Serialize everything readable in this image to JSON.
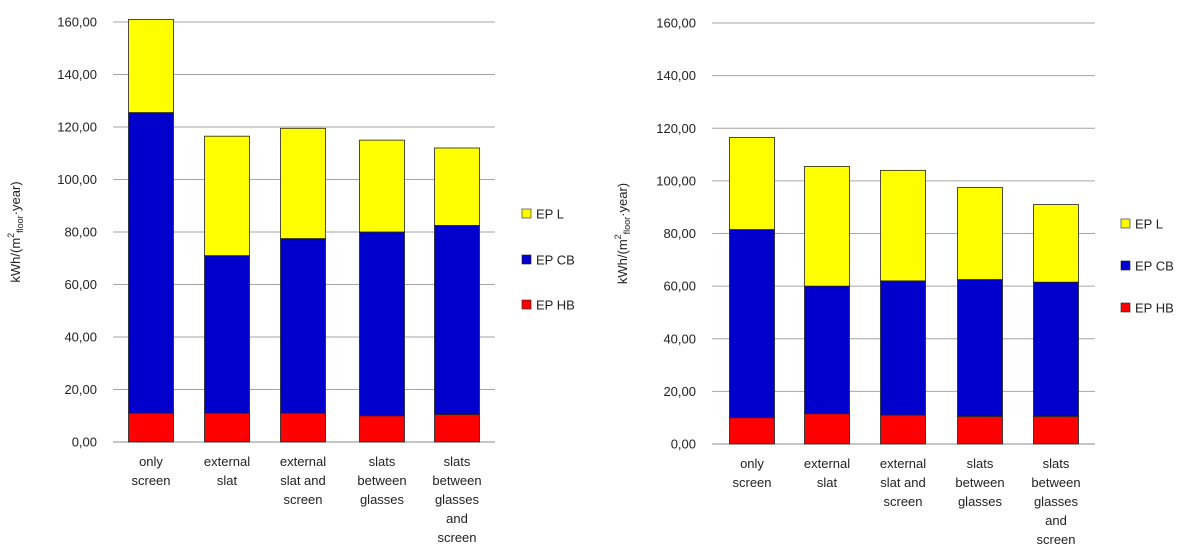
{
  "chart_data": [
    {
      "type": "bar",
      "stacked": true,
      "categories": [
        [
          "only",
          "screen"
        ],
        [
          "external",
          "slat"
        ],
        [
          "external",
          "slat and",
          "screen"
        ],
        [
          "slats",
          "between",
          "glasses"
        ],
        [
          "slats",
          "between",
          "glasses",
          "and",
          "screen"
        ]
      ],
      "series": [
        {
          "name": "EP HB",
          "color": "#ff0000",
          "values": [
            11,
            11,
            11,
            10,
            10.5
          ]
        },
        {
          "name": "EP CB",
          "color": "#0000cc",
          "values": [
            114.5,
            60,
            66.5,
            70,
            72
          ]
        },
        {
          "name": "EP L",
          "color": "#ffff00",
          "values": [
            35.5,
            45.5,
            42,
            35,
            29.5
          ]
        }
      ],
      "ylabel": {
        "base": "kWh/(m",
        "sup": "2",
        "sub": "floor",
        "end": "·year)"
      },
      "ylim": [
        0,
        160
      ],
      "yticks": [
        "0,00",
        "20,00",
        "40,00",
        "60,00",
        "80,00",
        "100,00",
        "120,00",
        "140,00",
        "160,00"
      ],
      "grid": true,
      "legend_position": "right"
    },
    {
      "type": "bar",
      "stacked": true,
      "categories": [
        [
          "only",
          "screen"
        ],
        [
          "external",
          "slat"
        ],
        [
          "external",
          "slat and",
          "screen"
        ],
        [
          "slats",
          "between",
          "glasses"
        ],
        [
          "slats",
          "between",
          "glasses",
          "and",
          "screen"
        ]
      ],
      "series": [
        {
          "name": "EP HB",
          "color": "#ff0000",
          "values": [
            10,
            11.5,
            11,
            10.5,
            10.5
          ]
        },
        {
          "name": "EP CB",
          "color": "#0000cc",
          "values": [
            71.5,
            48.5,
            51,
            52,
            51
          ]
        },
        {
          "name": "EP L",
          "color": "#ffff00",
          "values": [
            35,
            45.5,
            42,
            35,
            29.5
          ]
        }
      ],
      "ylabel": {
        "base": "kWh/(m",
        "sup": "2",
        "sub": "floor",
        "end": "·year)"
      },
      "ylim": [
        0,
        160
      ],
      "yticks": [
        "0,00",
        "20,00",
        "40,00",
        "60,00",
        "80,00",
        "100,00",
        "120,00",
        "140,00",
        "160,00"
      ],
      "grid": true,
      "legend_position": "right"
    }
  ]
}
